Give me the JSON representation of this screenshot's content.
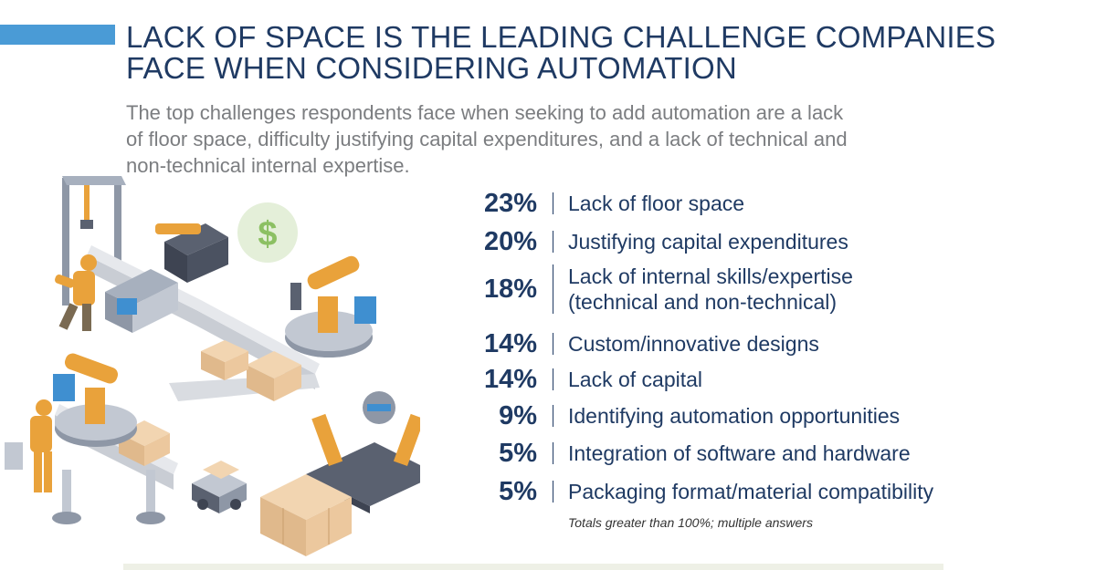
{
  "header": {
    "title_line1": "LACK OF SPACE IS THE LEADING CHALLENGE COMPANIES",
    "title_line2": "FACE WHEN CONSIDERING AUTOMATION",
    "subtitle_line1": "The top challenges respondents face when seeking to add automation are a lack",
    "subtitle_line2": "of floor space, difficulty justifying capital expenditures, and a lack of technical and",
    "subtitle_line3": "non-technical internal expertise."
  },
  "colors": {
    "accent": "#4a9bd6",
    "text_dark": "#1f3a63",
    "subtitle_gray": "#7b7d80",
    "robot_orange": "#e9a23b"
  },
  "illustration": {
    "semantic": "isometric-factory-automation-icon",
    "currency_symbol": "$"
  },
  "chart_data": {
    "type": "table",
    "title": "LACK OF SPACE IS THE LEADING CHALLENGE COMPANIES FACE WHEN CONSIDERING AUTOMATION",
    "unit": "%",
    "rows": [
      {
        "value": 23,
        "display": "23%",
        "label": [
          "Lack of floor space"
        ]
      },
      {
        "value": 20,
        "display": "20%",
        "label": [
          "Justifying capital expenditures"
        ]
      },
      {
        "value": 18,
        "display": "18%",
        "label": [
          "Lack of internal skills/expertise",
          "(technical and non-technical)"
        ]
      },
      {
        "value": 14,
        "display": "14%",
        "label": [
          "Custom/innovative designs"
        ]
      },
      {
        "value": 14,
        "display": "14%",
        "label": [
          "Lack of capital"
        ]
      },
      {
        "value": 9,
        "display": "9%",
        "label": [
          "Identifying automation opportunities"
        ]
      },
      {
        "value": 5,
        "display": "5%",
        "label": [
          "Integration of software and hardware"
        ]
      },
      {
        "value": 5,
        "display": "5%",
        "label": [
          "Packaging format/material compatibility"
        ]
      }
    ],
    "footnote": "Totals greater than 100%; multiple answers"
  }
}
